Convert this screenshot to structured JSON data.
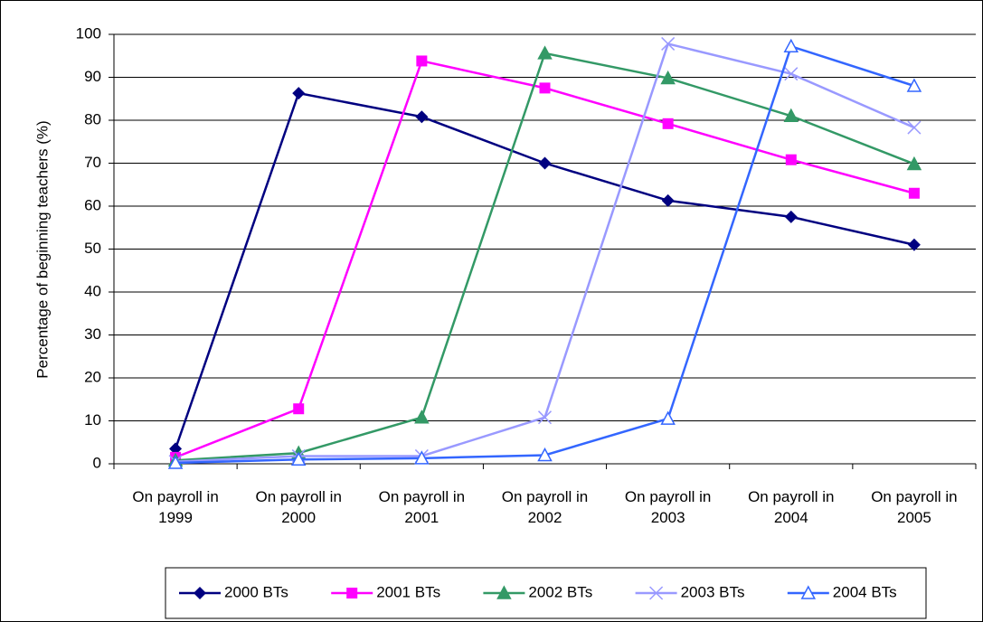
{
  "chart_data": {
    "type": "line",
    "y_label": "Percentage of beginning teachers (%)",
    "categories": [
      "On payroll in 1999",
      "On payroll in 2000",
      "On payroll in 2001",
      "On payroll in 2002",
      "On payroll in 2003",
      "On payroll in 2004",
      "On payroll in 2005"
    ],
    "series": [
      {
        "name": "2000 BTs",
        "color": "#000080",
        "marker": "diamond",
        "values": [
          3.5,
          86.3,
          80.8,
          70,
          61.3,
          57.5,
          51
        ]
      },
      {
        "name": "2001 BTs",
        "color": "#ff00ff",
        "marker": "square",
        "values": [
          1.5,
          12.8,
          93.8,
          87.5,
          79.2,
          70.8,
          63
        ]
      },
      {
        "name": "2002 BTs",
        "color": "#339966",
        "marker": "triangle",
        "values": [
          0.8,
          2.5,
          10.8,
          95.6,
          89.8,
          81,
          69.8
        ]
      },
      {
        "name": "2003 BTs",
        "color": "#9999ff",
        "marker": "x",
        "values": [
          0.5,
          1.8,
          1.8,
          10.8,
          97.8,
          90.8,
          78.3
        ]
      },
      {
        "name": "2004 BTs",
        "color": "#3366ff",
        "marker": "open-triangle",
        "values": [
          0.2,
          1,
          1.3,
          2,
          10.5,
          97.2,
          88
        ]
      }
    ],
    "ylim": [
      0,
      100
    ],
    "yticks": [
      0,
      10,
      20,
      30,
      40,
      50,
      60,
      70,
      80,
      90,
      100
    ],
    "grid": true,
    "legend": "bottom"
  }
}
